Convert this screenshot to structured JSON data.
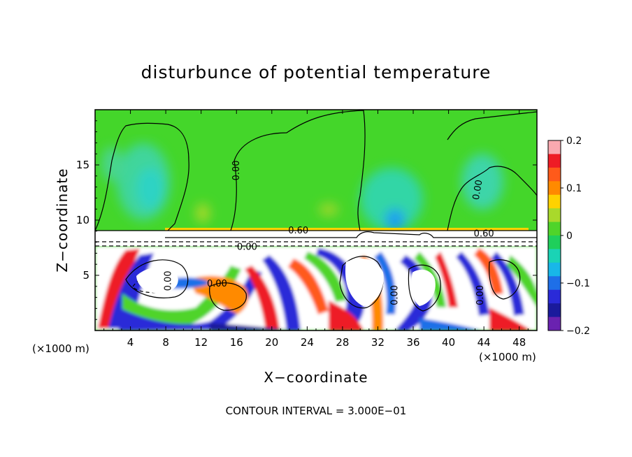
{
  "chart_data": {
    "type": "heatmap",
    "title": "disturbunce of potential temperature",
    "xlabel": "X−coordinate",
    "ylabel": "Z−coordinate",
    "x_unit": "(×1000 m)",
    "x_unit_right": "(×1000 m)",
    "footer": "CONTOUR INTERVAL = 3.000E−01",
    "xlim": [
      0,
      50
    ],
    "ylim": [
      0,
      20
    ],
    "x_ticks": [
      4,
      8,
      12,
      16,
      20,
      24,
      28,
      32,
      36,
      40,
      44,
      48
    ],
    "y_ticks": [
      5,
      10,
      15
    ],
    "colorbar": {
      "range": [
        -0.2,
        0.2
      ],
      "ticks": [
        "0.2",
        "0.1",
        "0",
        "−0.1",
        "−0.2"
      ],
      "colors": [
        "#f9a9b0",
        "#ee1c25",
        "#ff5a1a",
        "#ff8a00",
        "#ffd200",
        "#a9d92b",
        "#4fd42a",
        "#1fcf5b",
        "#1ad3b5",
        "#18b7e8",
        "#1e6fe8",
        "#2a2ad8",
        "#1a1a9c",
        "#6a22b0"
      ]
    },
    "contour_labels": [
      {
        "text": "0.00",
        "x": 16.3,
        "y": 14.5,
        "rotate": -90
      },
      {
        "text": "0.00",
        "x": 43.6,
        "y": 12.7,
        "rotate": -80
      },
      {
        "text": "0.60",
        "x": 23.0,
        "y": 8.8,
        "rotate": 0
      },
      {
        "text": "0.00",
        "x": 17.2,
        "y": 7.3,
        "rotate": 0
      },
      {
        "text": "0.00",
        "x": 13.8,
        "y": 4.0,
        "rotate": 0
      },
      {
        "text": "0.00",
        "x": 8.6,
        "y": 4.5,
        "rotate": -90
      },
      {
        "text": "0.00",
        "x": 34.2,
        "y": 3.2,
        "rotate": -90
      },
      {
        "text": "0.00",
        "x": 43.9,
        "y": 3.2,
        "rotate": -90
      },
      {
        "text": "0.60",
        "x": 44.0,
        "y": 8.5,
        "rotate": 0
      }
    ]
  }
}
